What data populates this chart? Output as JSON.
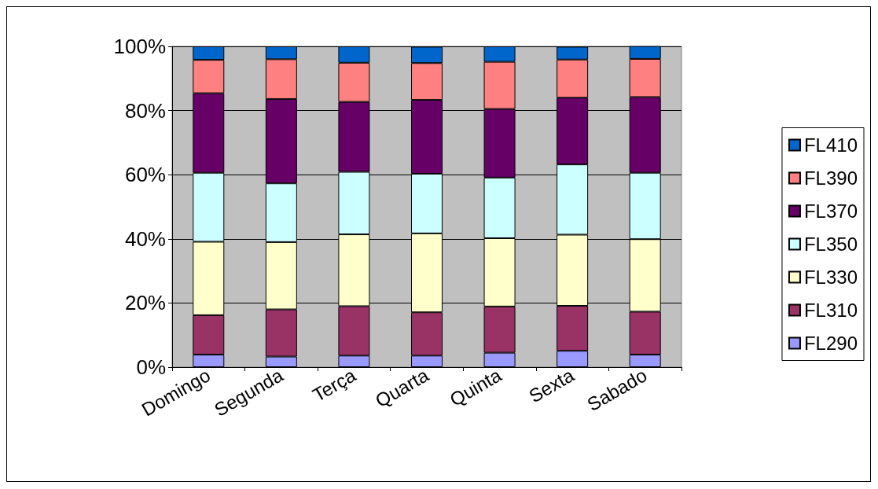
{
  "chart_data": {
    "type": "bar",
    "stacked": true,
    "categories": [
      "Domingo",
      "Segunda",
      "Terça",
      "Quarta",
      "Quinta",
      "Sexta",
      "Sabado"
    ],
    "series": [
      {
        "name": "FL290",
        "color": "#9999ff",
        "values": [
          3.9,
          3.3,
          3.6,
          3.6,
          4.5,
          5.1,
          3.9
        ]
      },
      {
        "name": "FL310",
        "color": "#993366",
        "values": [
          12.3,
          14.7,
          15.4,
          13.5,
          14.4,
          14.0,
          13.4
        ]
      },
      {
        "name": "FL330",
        "color": "#ffffcc",
        "values": [
          22.9,
          21.0,
          22.4,
          24.6,
          21.3,
          22.2,
          22.6
        ]
      },
      {
        "name": "FL350",
        "color": "#ccffff",
        "values": [
          21.5,
          18.3,
          19.5,
          18.6,
          18.9,
          21.9,
          20.7
        ]
      },
      {
        "name": "FL370",
        "color": "#660066",
        "values": [
          24.8,
          26.3,
          21.8,
          23.0,
          21.4,
          20.8,
          23.6
        ]
      },
      {
        "name": "FL390",
        "color": "#ff8080",
        "values": [
          10.4,
          12.4,
          12.2,
          11.5,
          14.7,
          11.9,
          11.9
        ]
      },
      {
        "name": "FL410",
        "color": "#0066cc",
        "values": [
          4.2,
          4.0,
          5.1,
          5.1,
          4.8,
          4.0,
          4.0
        ]
      }
    ],
    "ylim": [
      0,
      100
    ],
    "yticks": [
      {
        "value": 0,
        "label": "0%"
      },
      {
        "value": 20,
        "label": "20%"
      },
      {
        "value": 40,
        "label": "40%"
      },
      {
        "value": 60,
        "label": "60%"
      },
      {
        "value": 80,
        "label": "80%"
      },
      {
        "value": 100,
        "label": "100%"
      }
    ],
    "grid": "y",
    "legend": "right"
  }
}
